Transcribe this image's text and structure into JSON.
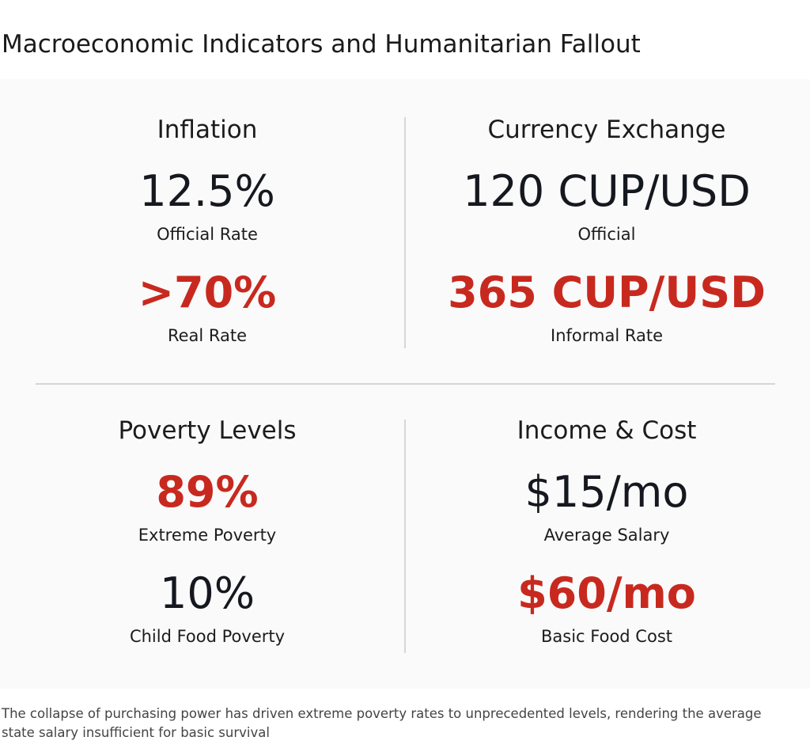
{
  "title": "Macroeconomic Indicators and Humanitarian Fallout",
  "highlight_color": "#c8291f",
  "text_color": "#16181f",
  "panels": [
    {
      "heading": "Inflation",
      "items": [
        {
          "value": "12.5%",
          "label": "Official Rate",
          "highlight": false
        },
        {
          "value": ">70%",
          "label": "Real Rate",
          "highlight": true
        }
      ]
    },
    {
      "heading": "Currency Exchange",
      "items": [
        {
          "value": "120 CUP/USD",
          "label": "Official",
          "highlight": false
        },
        {
          "value": "365 CUP/USD",
          "label": "Informal Rate",
          "highlight": true
        }
      ]
    },
    {
      "heading": "Poverty Levels",
      "items": [
        {
          "value": "89%",
          "label": "Extreme Poverty",
          "highlight": true
        },
        {
          "value": "10%",
          "label": "Child Food Poverty",
          "highlight": false
        }
      ]
    },
    {
      "heading": "Income & Cost",
      "items": [
        {
          "value": "$15/mo",
          "label": "Average Salary",
          "highlight": false
        },
        {
          "value": "$60/mo",
          "label": "Basic Food Cost",
          "highlight": true
        }
      ]
    }
  ],
  "caption": "The collapse of purchasing power has driven extreme poverty rates to unprecedented levels, rendering the average state salary insufficient for basic survival"
}
